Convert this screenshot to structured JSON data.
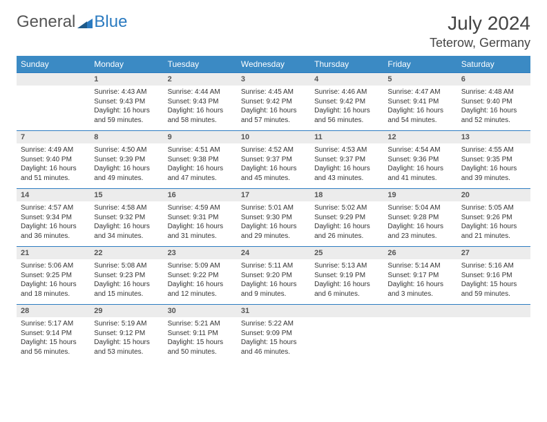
{
  "logo": {
    "general": "General",
    "blue": "Blue"
  },
  "title": {
    "month_year": "July 2024",
    "location": "Teterow, Germany"
  },
  "weekdays": [
    "Sunday",
    "Monday",
    "Tuesday",
    "Wednesday",
    "Thursday",
    "Friday",
    "Saturday"
  ],
  "colors": {
    "header_bg": "#3b8ac4",
    "header_text": "#ffffff",
    "daynum_bg": "#ececec",
    "border": "#2a7ac0",
    "logo_blue": "#2a7ac0",
    "text": "#333333"
  },
  "weeks": [
    [
      null,
      {
        "n": "1",
        "sr": "Sunrise: 4:43 AM",
        "ss": "Sunset: 9:43 PM",
        "dl": "Daylight: 16 hours and 59 minutes."
      },
      {
        "n": "2",
        "sr": "Sunrise: 4:44 AM",
        "ss": "Sunset: 9:43 PM",
        "dl": "Daylight: 16 hours and 58 minutes."
      },
      {
        "n": "3",
        "sr": "Sunrise: 4:45 AM",
        "ss": "Sunset: 9:42 PM",
        "dl": "Daylight: 16 hours and 57 minutes."
      },
      {
        "n": "4",
        "sr": "Sunrise: 4:46 AM",
        "ss": "Sunset: 9:42 PM",
        "dl": "Daylight: 16 hours and 56 minutes."
      },
      {
        "n": "5",
        "sr": "Sunrise: 4:47 AM",
        "ss": "Sunset: 9:41 PM",
        "dl": "Daylight: 16 hours and 54 minutes."
      },
      {
        "n": "6",
        "sr": "Sunrise: 4:48 AM",
        "ss": "Sunset: 9:40 PM",
        "dl": "Daylight: 16 hours and 52 minutes."
      }
    ],
    [
      {
        "n": "7",
        "sr": "Sunrise: 4:49 AM",
        "ss": "Sunset: 9:40 PM",
        "dl": "Daylight: 16 hours and 51 minutes."
      },
      {
        "n": "8",
        "sr": "Sunrise: 4:50 AM",
        "ss": "Sunset: 9:39 PM",
        "dl": "Daylight: 16 hours and 49 minutes."
      },
      {
        "n": "9",
        "sr": "Sunrise: 4:51 AM",
        "ss": "Sunset: 9:38 PM",
        "dl": "Daylight: 16 hours and 47 minutes."
      },
      {
        "n": "10",
        "sr": "Sunrise: 4:52 AM",
        "ss": "Sunset: 9:37 PM",
        "dl": "Daylight: 16 hours and 45 minutes."
      },
      {
        "n": "11",
        "sr": "Sunrise: 4:53 AM",
        "ss": "Sunset: 9:37 PM",
        "dl": "Daylight: 16 hours and 43 minutes."
      },
      {
        "n": "12",
        "sr": "Sunrise: 4:54 AM",
        "ss": "Sunset: 9:36 PM",
        "dl": "Daylight: 16 hours and 41 minutes."
      },
      {
        "n": "13",
        "sr": "Sunrise: 4:55 AM",
        "ss": "Sunset: 9:35 PM",
        "dl": "Daylight: 16 hours and 39 minutes."
      }
    ],
    [
      {
        "n": "14",
        "sr": "Sunrise: 4:57 AM",
        "ss": "Sunset: 9:34 PM",
        "dl": "Daylight: 16 hours and 36 minutes."
      },
      {
        "n": "15",
        "sr": "Sunrise: 4:58 AM",
        "ss": "Sunset: 9:32 PM",
        "dl": "Daylight: 16 hours and 34 minutes."
      },
      {
        "n": "16",
        "sr": "Sunrise: 4:59 AM",
        "ss": "Sunset: 9:31 PM",
        "dl": "Daylight: 16 hours and 31 minutes."
      },
      {
        "n": "17",
        "sr": "Sunrise: 5:01 AM",
        "ss": "Sunset: 9:30 PM",
        "dl": "Daylight: 16 hours and 29 minutes."
      },
      {
        "n": "18",
        "sr": "Sunrise: 5:02 AM",
        "ss": "Sunset: 9:29 PM",
        "dl": "Daylight: 16 hours and 26 minutes."
      },
      {
        "n": "19",
        "sr": "Sunrise: 5:04 AM",
        "ss": "Sunset: 9:28 PM",
        "dl": "Daylight: 16 hours and 23 minutes."
      },
      {
        "n": "20",
        "sr": "Sunrise: 5:05 AM",
        "ss": "Sunset: 9:26 PM",
        "dl": "Daylight: 16 hours and 21 minutes."
      }
    ],
    [
      {
        "n": "21",
        "sr": "Sunrise: 5:06 AM",
        "ss": "Sunset: 9:25 PM",
        "dl": "Daylight: 16 hours and 18 minutes."
      },
      {
        "n": "22",
        "sr": "Sunrise: 5:08 AM",
        "ss": "Sunset: 9:23 PM",
        "dl": "Daylight: 16 hours and 15 minutes."
      },
      {
        "n": "23",
        "sr": "Sunrise: 5:09 AM",
        "ss": "Sunset: 9:22 PM",
        "dl": "Daylight: 16 hours and 12 minutes."
      },
      {
        "n": "24",
        "sr": "Sunrise: 5:11 AM",
        "ss": "Sunset: 9:20 PM",
        "dl": "Daylight: 16 hours and 9 minutes."
      },
      {
        "n": "25",
        "sr": "Sunrise: 5:13 AM",
        "ss": "Sunset: 9:19 PM",
        "dl": "Daylight: 16 hours and 6 minutes."
      },
      {
        "n": "26",
        "sr": "Sunrise: 5:14 AM",
        "ss": "Sunset: 9:17 PM",
        "dl": "Daylight: 16 hours and 3 minutes."
      },
      {
        "n": "27",
        "sr": "Sunrise: 5:16 AM",
        "ss": "Sunset: 9:16 PM",
        "dl": "Daylight: 15 hours and 59 minutes."
      }
    ],
    [
      {
        "n": "28",
        "sr": "Sunrise: 5:17 AM",
        "ss": "Sunset: 9:14 PM",
        "dl": "Daylight: 15 hours and 56 minutes."
      },
      {
        "n": "29",
        "sr": "Sunrise: 5:19 AM",
        "ss": "Sunset: 9:12 PM",
        "dl": "Daylight: 15 hours and 53 minutes."
      },
      {
        "n": "30",
        "sr": "Sunrise: 5:21 AM",
        "ss": "Sunset: 9:11 PM",
        "dl": "Daylight: 15 hours and 50 minutes."
      },
      {
        "n": "31",
        "sr": "Sunrise: 5:22 AM",
        "ss": "Sunset: 9:09 PM",
        "dl": "Daylight: 15 hours and 46 minutes."
      },
      null,
      null,
      null
    ]
  ]
}
